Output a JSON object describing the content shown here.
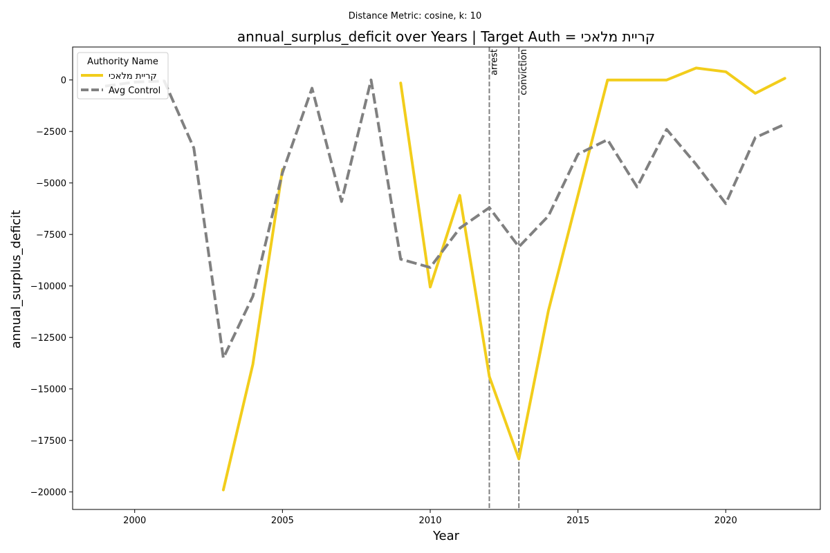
{
  "suptitle": "Distance Metric: cosine, k: 10",
  "chart_data": {
    "type": "line",
    "title": "annual_surplus_deficit over Years | Target Auth = קריית מלאכי",
    "xlabel": "Year",
    "ylabel": "annual_surplus_deficit",
    "xlim": [
      1997.9,
      2023.2
    ],
    "ylim": [
      -20850,
      1600
    ],
    "x_ticks": [
      2000,
      2005,
      2010,
      2015,
      2020
    ],
    "x_tick_labels": [
      "2000",
      "2005",
      "2010",
      "2015",
      "2020"
    ],
    "y_ticks": [
      0,
      -2500,
      -5000,
      -7500,
      -10000,
      -12500,
      -15000,
      -17500,
      -20000
    ],
    "y_tick_labels": [
      "0",
      "−2500",
      "−5000",
      "−7500",
      "−10000",
      "−12500",
      "−15000",
      "−17500",
      "−20000"
    ],
    "grid": false,
    "legend": {
      "title": "Authority Name",
      "placement": "top-left"
    },
    "series": [
      {
        "name": "קריית מלאכי",
        "color": "#f2cd1b",
        "style": "solid",
        "points": [
          [
            2003,
            -19900
          ],
          [
            2004,
            -13800
          ],
          [
            2005,
            -4350
          ],
          null,
          [
            2009,
            -150
          ],
          [
            2010,
            -10050
          ],
          [
            2011,
            -5600
          ],
          [
            2012,
            -14400
          ],
          [
            2013,
            -18400
          ],
          [
            2014,
            -11200
          ],
          [
            2015,
            -5600
          ],
          [
            2016,
            0
          ],
          [
            2017,
            0
          ],
          [
            2018,
            0
          ],
          [
            2019,
            580
          ],
          [
            2020,
            400
          ],
          [
            2021,
            -650
          ],
          [
            2022,
            80
          ]
        ]
      },
      {
        "name": "Avg Control",
        "color": "#808080",
        "style": "dashed",
        "points": [
          [
            1999,
            -300
          ],
          [
            2000,
            -100
          ],
          [
            2001,
            -50
          ],
          [
            2002,
            -3300
          ],
          [
            2003,
            -13500
          ],
          [
            2004,
            -10500
          ],
          [
            2005,
            -4500
          ],
          [
            2006,
            -400
          ],
          [
            2007,
            -5900
          ],
          [
            2008,
            0
          ],
          [
            2009,
            -8700
          ],
          [
            2010,
            -9100
          ],
          [
            2011,
            -7200
          ],
          [
            2012,
            -6200
          ],
          [
            2013,
            -8100
          ],
          [
            2014,
            -6600
          ],
          [
            2015,
            -3600
          ],
          [
            2016,
            -2900
          ],
          [
            2017,
            -5200
          ],
          [
            2018,
            -2400
          ],
          [
            2019,
            -4100
          ],
          [
            2020,
            -6000
          ],
          [
            2021,
            -2800
          ],
          [
            2022,
            -2150
          ]
        ]
      }
    ],
    "annotations": [
      {
        "x": 2012,
        "label": "arrest"
      },
      {
        "x": 2013,
        "label": "conviction"
      }
    ]
  }
}
